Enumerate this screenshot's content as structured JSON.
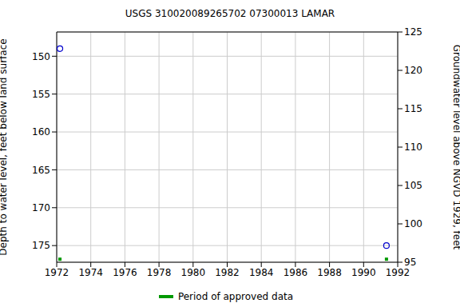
{
  "chart_data": {
    "type": "scatter",
    "title": "USGS 310020089265702 07300013  LAMAR",
    "y_label": "Depth to water level, feet below land surface",
    "y2_label": "Groundwater level above NGVD 1929, feet",
    "xlim": [
      1972,
      1992
    ],
    "xticks": [
      1972,
      1974,
      1976,
      1978,
      1980,
      1982,
      1984,
      1986,
      1988,
      1990,
      1992
    ],
    "ylim": [
      146.8,
      177.2
    ],
    "yticks": [
      150,
      155,
      160,
      165,
      170,
      175
    ],
    "y2lim": [
      95,
      125
    ],
    "y2ticks": [
      95,
      100,
      105,
      110,
      115,
      120,
      125
    ],
    "grid": true,
    "legend": "bottom",
    "series": [
      {
        "color": "#0000cc",
        "marker": "circle",
        "x": [
          1972.19,
          1991.34
        ],
        "values": [
          149.0,
          175.0
        ]
      },
      {
        "name": "Period of approved data",
        "color": "#009900",
        "marker": "square",
        "x": [
          1972.19,
          1991.34
        ],
        "values": [
          176.8,
          176.8
        ]
      }
    ]
  }
}
